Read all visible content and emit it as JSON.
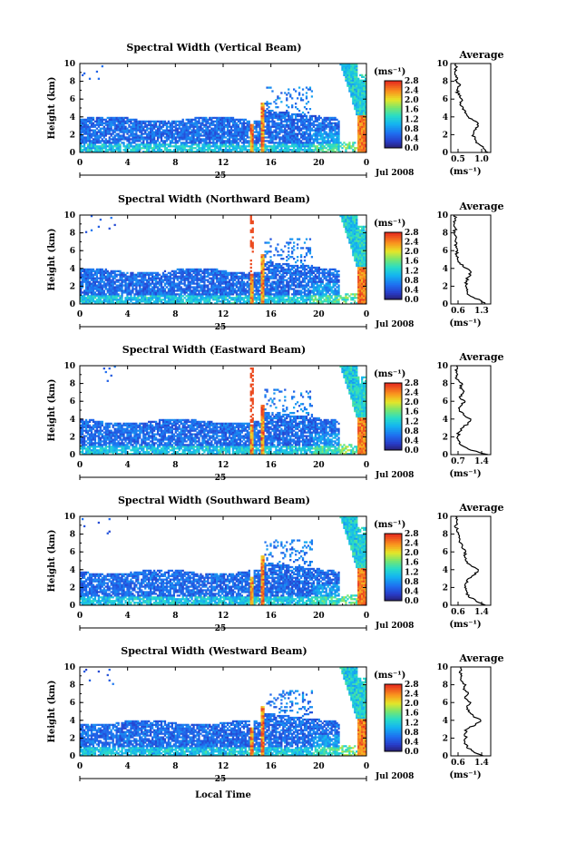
{
  "figure": {
    "xlabel": "Local Time",
    "date_label": "Jul 2008",
    "day_label": "25"
  },
  "chart_data": [
    {
      "type": "heatmap",
      "title": "Spectral Width (Vertical Beam)",
      "ylabel": "Height (km)",
      "xlim": [
        0,
        24
      ],
      "ylim": [
        0,
        10
      ],
      "xticks": [
        "0",
        "4",
        "8",
        "12",
        "16",
        "20",
        "0"
      ],
      "yticks": [
        "0",
        "2",
        "4",
        "6",
        "8",
        "10"
      ],
      "colorbar": {
        "label": "(ms⁻¹)",
        "range": [
          0.0,
          2.8
        ],
        "ticks": [
          "0.0",
          "0.4",
          "0.8",
          "1.2",
          "1.6",
          "2.0",
          "2.4",
          "2.8"
        ]
      },
      "profile": {
        "type": "line",
        "title": "Average",
        "xlabel": "(ms⁻¹)",
        "xlim": [
          0.5,
          1.3
        ],
        "xticks": [
          "0.5",
          "1.0"
        ],
        "yticks": [
          "0",
          "2",
          "4",
          "6",
          "8",
          "10"
        ],
        "heights": [
          0,
          0.5,
          1,
          1.5,
          2,
          2.5,
          3,
          3.5,
          4,
          4.5,
          5,
          5.5,
          6,
          6.5,
          7,
          7.5,
          8,
          8.5,
          9,
          9.5,
          10
        ],
        "values": [
          1.25,
          1.15,
          1.05,
          0.98,
          0.95,
          0.97,
          1.05,
          1.0,
          0.85,
          0.78,
          0.75,
          0.7,
          0.72,
          0.65,
          0.62,
          0.68,
          0.62,
          0.6,
          0.58,
          0.6,
          0.6
        ]
      }
    },
    {
      "type": "heatmap",
      "title": "Spectral Width (Northward Beam)",
      "ylabel": "Height (km)",
      "xlim": [
        0,
        24
      ],
      "ylim": [
        0,
        10
      ],
      "xticks": [
        "0",
        "4",
        "8",
        "12",
        "16",
        "20",
        "0"
      ],
      "yticks": [
        "0",
        "2",
        "4",
        "6",
        "8",
        "10"
      ],
      "colorbar": {
        "label": "(ms⁻¹)",
        "range": [
          0.0,
          2.8
        ],
        "ticks": [
          "0.0",
          "0.4",
          "0.8",
          "1.2",
          "1.6",
          "2.0",
          "2.4",
          "2.8"
        ]
      },
      "profile": {
        "type": "line",
        "title": "Average",
        "xlabel": "(ms⁻¹)",
        "xlim": [
          0.6,
          1.3
        ],
        "xticks": [
          "0.6",
          "1.3"
        ],
        "yticks": [
          "0",
          "2",
          "4",
          "6",
          "8",
          "10"
        ],
        "heights": [
          0,
          0.5,
          1,
          1.5,
          2,
          2.5,
          3,
          3.5,
          4,
          4.5,
          5,
          5.5,
          6,
          6.5,
          7,
          7.5,
          8,
          8.5,
          9,
          9.5,
          10
        ],
        "values": [
          1.2,
          1.1,
          0.92,
          0.88,
          0.86,
          0.88,
          0.9,
          0.95,
          0.88,
          0.76,
          0.72,
          0.7,
          0.72,
          0.7,
          0.68,
          0.7,
          0.66,
          0.68,
          0.66,
          0.68,
          0.66
        ]
      }
    },
    {
      "type": "heatmap",
      "title": "Spectral Width (Eastward Beam)",
      "ylabel": "Height (km)",
      "xlim": [
        0,
        24
      ],
      "ylim": [
        0,
        10
      ],
      "xticks": [
        "0",
        "4",
        "8",
        "12",
        "16",
        "20",
        "0"
      ],
      "yticks": [
        "0",
        "2",
        "4",
        "6",
        "8",
        "10"
      ],
      "colorbar": {
        "label": "(ms⁻¹)",
        "range": [
          0.0,
          2.8
        ],
        "ticks": [
          "0.0",
          "0.4",
          "0.8",
          "1.2",
          "1.6",
          "2.0",
          "2.4",
          "2.8"
        ]
      },
      "profile": {
        "type": "line",
        "title": "Average",
        "xlabel": "(ms⁻¹)",
        "xlim": [
          0.7,
          1.4
        ],
        "xticks": [
          "0.7",
          "1.4"
        ],
        "yticks": [
          "0",
          "2",
          "4",
          "6",
          "8",
          "10"
        ],
        "heights": [
          0,
          0.5,
          1,
          1.5,
          2,
          2.5,
          3,
          3.5,
          4,
          4.5,
          5,
          5.5,
          6,
          6.5,
          7,
          7.5,
          8,
          8.5,
          9,
          9.5,
          10
        ],
        "values": [
          1.35,
          1.05,
          0.9,
          0.85,
          0.82,
          0.84,
          0.9,
          1.0,
          1.05,
          0.92,
          0.85,
          0.88,
          0.95,
          0.85,
          0.92,
          0.86,
          0.9,
          0.8,
          0.82,
          0.78,
          0.8
        ]
      }
    },
    {
      "type": "heatmap",
      "title": "Spectral Width (Southward Beam)",
      "ylabel": "Height (km)",
      "xlim": [
        0,
        24
      ],
      "ylim": [
        0,
        10
      ],
      "xticks": [
        "0",
        "4",
        "8",
        "12",
        "16",
        "20",
        "0"
      ],
      "yticks": [
        "0",
        "2",
        "4",
        "6",
        "8",
        "10"
      ],
      "colorbar": {
        "label": "(ms⁻¹)",
        "range": [
          0.0,
          2.8
        ],
        "ticks": [
          "0.0",
          "0.4",
          "0.8",
          "1.2",
          "1.6",
          "2.0",
          "2.4",
          "2.8"
        ]
      },
      "profile": {
        "type": "line",
        "title": "Average",
        "xlabel": "(ms⁻¹)",
        "xlim": [
          0.6,
          1.4
        ],
        "xticks": [
          "0.6",
          "1.4"
        ],
        "yticks": [
          "0",
          "2",
          "4",
          "6",
          "8",
          "10"
        ],
        "heights": [
          0,
          0.5,
          1,
          1.5,
          2,
          2.5,
          3,
          3.5,
          4,
          4.5,
          5,
          5.5,
          6,
          6.5,
          7,
          7.5,
          8,
          8.5,
          9,
          9.5,
          10
        ],
        "values": [
          1.3,
          1.1,
          0.95,
          0.92,
          0.88,
          0.9,
          0.95,
          1.1,
          1.15,
          1.0,
          0.9,
          0.88,
          0.9,
          0.82,
          0.8,
          0.78,
          0.75,
          0.72,
          0.7,
          0.72,
          0.7
        ]
      }
    },
    {
      "type": "heatmap",
      "title": "Spectral Width (Westward Beam)",
      "ylabel": "Height (km)",
      "xlim": [
        0,
        24
      ],
      "ylim": [
        0,
        10
      ],
      "xticks": [
        "0",
        "4",
        "8",
        "12",
        "16",
        "20",
        "0"
      ],
      "yticks": [
        "0",
        "2",
        "4",
        "6",
        "8",
        "10"
      ],
      "colorbar": {
        "label": "(ms⁻¹)",
        "range": [
          0.0,
          2.8
        ],
        "ticks": [
          "0.0",
          "0.4",
          "0.8",
          "1.2",
          "1.6",
          "2.0",
          "2.4",
          "2.8"
        ]
      },
      "profile": {
        "type": "line",
        "title": "Average",
        "xlabel": "(ms⁻¹)",
        "xlim": [
          0.6,
          1.4
        ],
        "xticks": [
          "0.6",
          "1.4"
        ],
        "yticks": [
          "0",
          "2",
          "4",
          "6",
          "8",
          "10"
        ],
        "heights": [
          0,
          0.5,
          1,
          1.5,
          2,
          2.5,
          3,
          3.5,
          4,
          4.5,
          5,
          5.5,
          6,
          6.5,
          7,
          7.5,
          8,
          8.5,
          9,
          9.5,
          10
        ],
        "values": [
          1.25,
          1.05,
          0.92,
          0.88,
          0.9,
          0.88,
          0.92,
          1.1,
          1.2,
          1.05,
          0.95,
          0.92,
          1.0,
          0.88,
          0.95,
          0.85,
          0.9,
          0.8,
          0.82,
          0.78,
          0.8
        ]
      }
    }
  ]
}
